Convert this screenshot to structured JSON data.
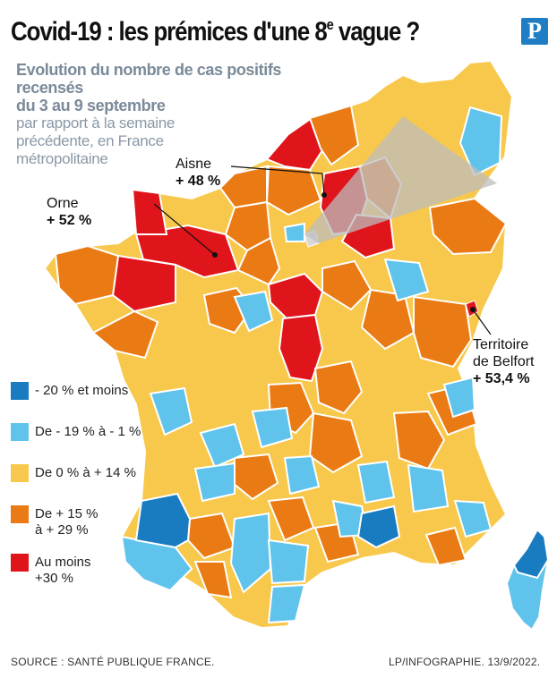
{
  "title": {
    "main": "Covid-19 : les prémices d'une 8",
    "superscript": "e",
    "end": " vague ?"
  },
  "logo": {
    "letter": "P"
  },
  "subtitle": {
    "line1": "Evolution du nombre de cas positifs recensés",
    "line2": "du 3 au 9 septembre",
    "line3": "par rapport à la semaine",
    "line4": "précédente, en France",
    "line5": "métropolitaine"
  },
  "colors": {
    "very_low": "#1a7cc0",
    "low": "#5fc3ec",
    "mid": "#f7c84c",
    "high": "#ea7a14",
    "very_high": "#e0151c",
    "background": "#ffffff"
  },
  "legend": [
    {
      "id": "very_low",
      "label_line1": "- 20 % et moins",
      "label_line2": ""
    },
    {
      "id": "low",
      "label_line1": "De - 19 % à - 1 %",
      "label_line2": ""
    },
    {
      "id": "mid",
      "label_line1": "De 0 % à  + 14 %",
      "label_line2": ""
    },
    {
      "id": "high",
      "label_line1": "De + 15 %",
      "label_line2": "à + 29 %"
    },
    {
      "id": "very_high",
      "label_line1": "Au moins",
      "label_line2": "+30 %"
    }
  ],
  "callouts": {
    "aisne": {
      "name": "Aisne",
      "value": "+ 48 %"
    },
    "orne": {
      "name": "Orne",
      "value": "+ 52 %"
    },
    "belfort": {
      "name_line1": "Territoire",
      "name_line2": "de Belfort",
      "value": "+ 53,4 %"
    }
  },
  "footer": {
    "source": "SOURCE : SANTÉ PUBLIQUE FRANCE.",
    "credit": "LP/INFOGRAPHIE.  13/9/2022."
  }
}
